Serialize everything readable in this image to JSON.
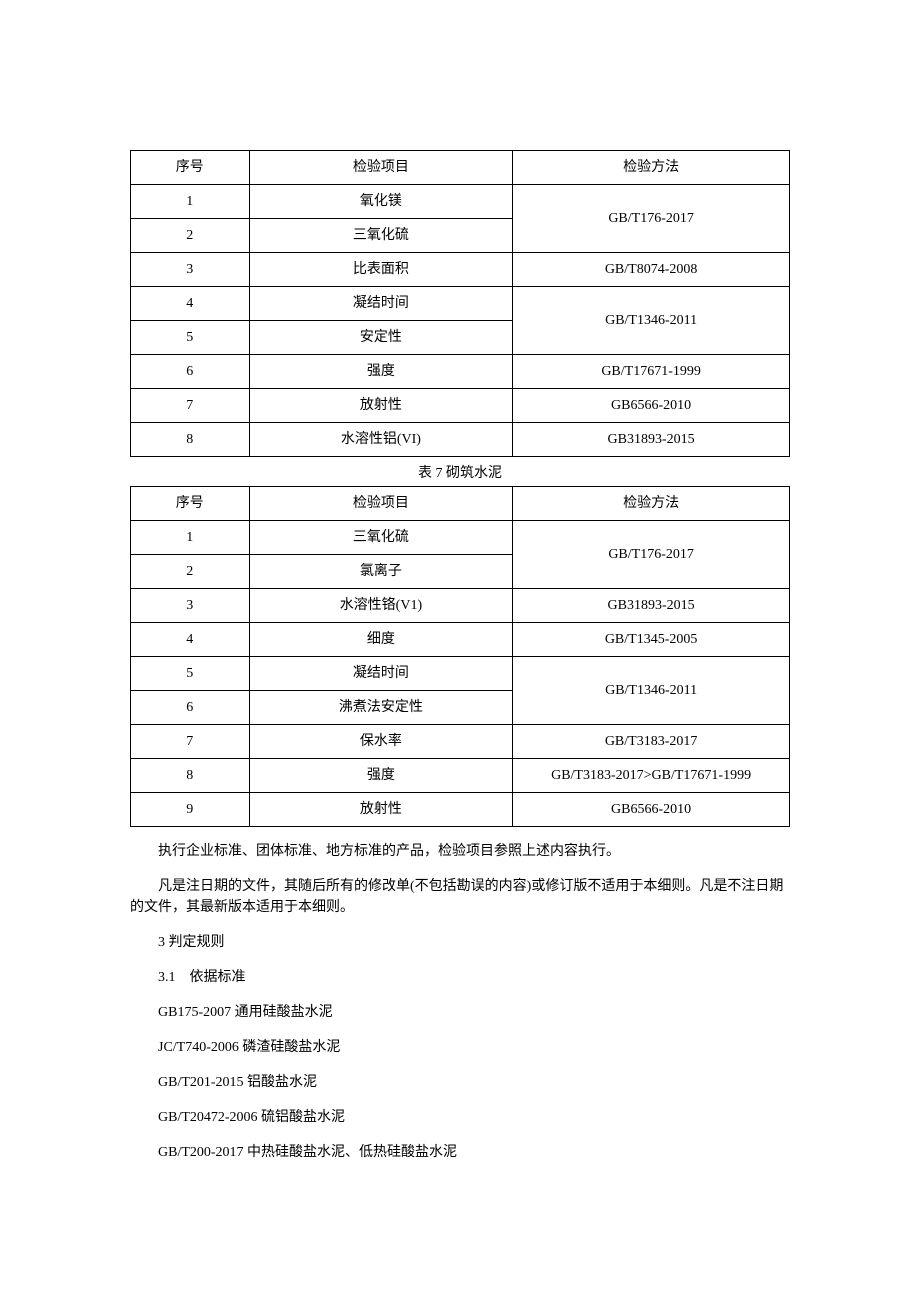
{
  "table1": {
    "headers": {
      "seq": "序号",
      "item": "检验项目",
      "method": "检验方法"
    },
    "rows": [
      {
        "seq": "1",
        "item": "氧化镁",
        "method": "GB/T176-2017",
        "rowspan": 2
      },
      {
        "seq": "2",
        "item": "三氧化硫"
      },
      {
        "seq": "3",
        "item": "比表面积",
        "method": "GB/T8074-2008"
      },
      {
        "seq": "4",
        "item": "凝结时间",
        "method": "GB/T1346-2011",
        "rowspan": 2
      },
      {
        "seq": "5",
        "item": "安定性"
      },
      {
        "seq": "6",
        "item": "强度",
        "method": "GB/T17671-1999"
      },
      {
        "seq": "7",
        "item": "放射性",
        "method": "GB6566-2010"
      },
      {
        "seq": "8",
        "item": "水溶性铝(VI)",
        "method": "GB31893-2015"
      }
    ]
  },
  "table2": {
    "caption": "表 7 砌筑水泥",
    "headers": {
      "seq": "序号",
      "item": "检验项目",
      "method": "检验方法"
    },
    "rows": [
      {
        "seq": "1",
        "item": "三氧化硫",
        "method": "GB/T176-2017",
        "rowspan": 2
      },
      {
        "seq": "2",
        "item": "氯离子"
      },
      {
        "seq": "3",
        "item": "水溶性铬(V1)",
        "method": "GB31893-2015"
      },
      {
        "seq": "4",
        "item": "细度",
        "method": "GB/T1345-2005"
      },
      {
        "seq": "5",
        "item": "凝结时间",
        "method": "GB/T1346-2011",
        "rowspan": 2
      },
      {
        "seq": "6",
        "item": "沸煮法安定性"
      },
      {
        "seq": "7",
        "item": "保水率",
        "method": "GB/T3183-2017"
      },
      {
        "seq": "8",
        "item": "强度",
        "method": "GB/T3183-2017>GB/T17671-1999"
      },
      {
        "seq": "9",
        "item": "放射性",
        "method": "GB6566-2010"
      }
    ]
  },
  "paragraphs": {
    "p1": "执行企业标准、团体标准、地方标准的产品，检验项目参照上述内容执行。",
    "p2": "凡是注日期的文件，其随后所有的修改单(不包括勘误的内容)或修订版不适用于本细则。凡是不注日期的文件，其最新版本适用于本细则。",
    "p3": "3 判定规则",
    "p4": "3.1　依据标准",
    "p5": "GB175-2007 通用硅酸盐水泥",
    "p6": "JC/T740-2006 磷渣硅酸盐水泥",
    "p7": "GB/T201-2015 铝酸盐水泥",
    "p8": "GB/T20472-2006 硫铝酸盐水泥",
    "p9": "GB/T200-2017 中热硅酸盐水泥、低热硅酸盐水泥"
  }
}
